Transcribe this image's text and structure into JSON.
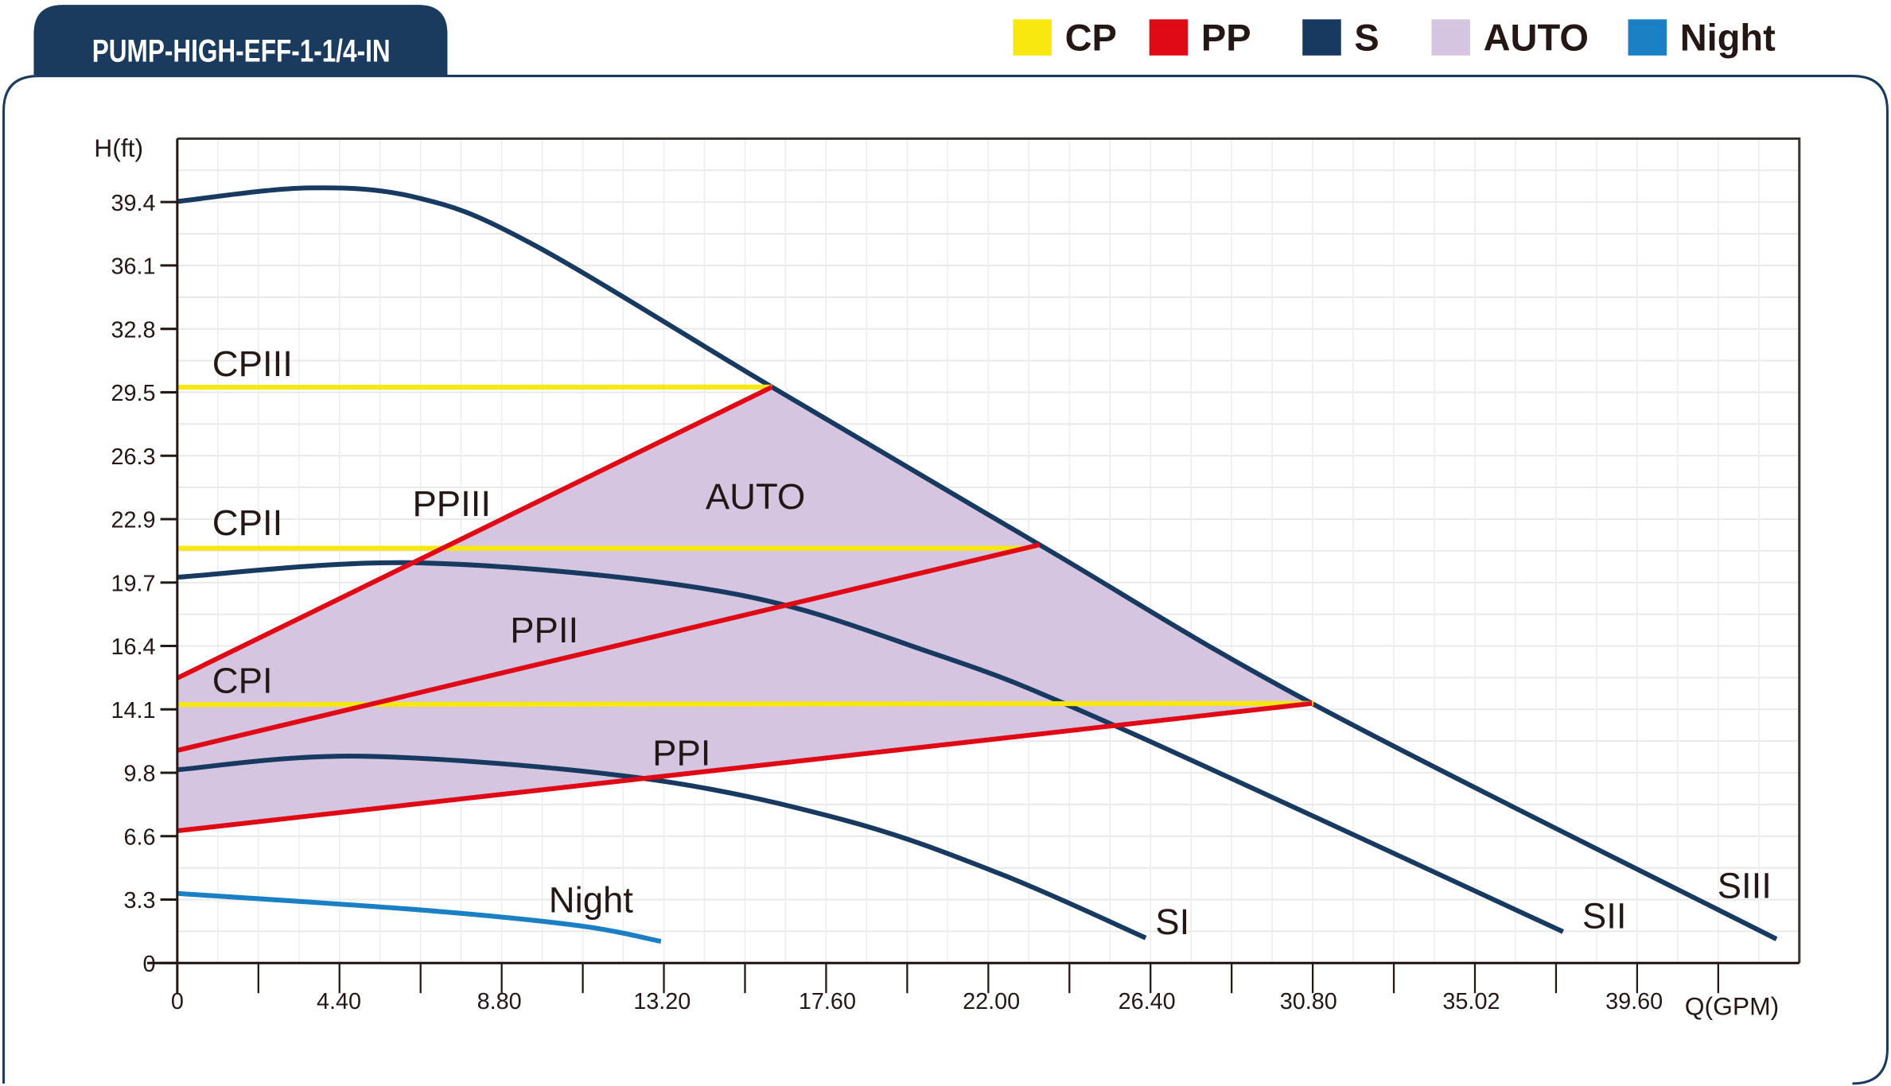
{
  "title": "PUMP-HIGH-EFF-1-1/4-IN",
  "legend": [
    {
      "label": "CP",
      "color": "#f8e80f"
    },
    {
      "label": "PP",
      "color": "#e00a16"
    },
    {
      "label": "S",
      "color": "#183a60"
    },
    {
      "label": "AUTO",
      "color": "#d5c5e1"
    },
    {
      "label": "Night",
      "color": "#1b7fc4"
    }
  ],
  "chart_data": {
    "type": "line",
    "title": "PUMP-HIGH-EFF-1-1/4-IN",
    "xlabel": "Q(GPM)",
    "ylabel": "H(ft)",
    "xlim": [
      0,
      44.0
    ],
    "ylim": [
      0,
      42.65
    ],
    "grid": true,
    "legend_position": "top-right",
    "x_ticks": [
      0,
      4.4,
      8.8,
      13.2,
      17.6,
      22.0,
      26.4,
      30.8,
      35.02,
      39.6
    ],
    "x_tick_labels": [
      "0",
      "4.40",
      "8.80",
      "13.20",
      "17.60",
      "22.00",
      "26.40",
      "30.80",
      "35.02",
      "39.60"
    ],
    "y_tick_labels": [
      "0",
      "3.3",
      "6.6",
      "9.8",
      "14.1",
      "16.4",
      "19.7",
      "22.9",
      "26.3",
      "29.5",
      "32.8",
      "36.1",
      "39.4"
    ],
    "series": [
      {
        "name": "SIII",
        "group": "S",
        "color": "#183a60",
        "smooth": true,
        "points": [
          [
            0,
            39.4
          ],
          [
            3.53,
            40.1
          ],
          [
            6.5,
            39.6
          ],
          [
            9.58,
            37.25
          ],
          [
            16.13,
            29.8
          ],
          [
            23.39,
            21.64
          ],
          [
            30.78,
            13.43
          ],
          [
            43.38,
            1.24
          ]
        ]
      },
      {
        "name": "SII",
        "group": "S",
        "color": "#183a60",
        "smooth": true,
        "points": [
          [
            0,
            19.96
          ],
          [
            6.64,
            20.7
          ],
          [
            14.82,
            19.2
          ],
          [
            20.38,
            16.1
          ],
          [
            25.29,
            12.4
          ],
          [
            37.59,
            1.62
          ]
        ]
      },
      {
        "name": "SI",
        "group": "S",
        "color": "#183a60",
        "smooth": true,
        "points": [
          [
            0,
            10.0
          ],
          [
            5.0,
            10.7
          ],
          [
            12.53,
            9.58
          ],
          [
            18.09,
            7.4
          ],
          [
            22.34,
            4.6
          ],
          [
            26.27,
            1.3
          ]
        ]
      },
      {
        "name": "Night",
        "group": "Night",
        "color": "#1b7fc4",
        "smooth": true,
        "points": [
          [
            0,
            3.6
          ],
          [
            6.64,
            2.74
          ],
          [
            10.9,
            1.93
          ],
          [
            13.12,
            1.12
          ]
        ]
      },
      {
        "name": "CPIII",
        "group": "CP",
        "color": "#f8e80f",
        "points": [
          [
            0,
            29.79
          ],
          [
            16.13,
            29.8
          ]
        ]
      },
      {
        "name": "CPII",
        "group": "CP",
        "color": "#f8e80f",
        "points": [
          [
            0,
            21.46
          ],
          [
            23.16,
            21.46
          ]
        ]
      },
      {
        "name": "CPI",
        "group": "CP",
        "color": "#f8e80f",
        "points": [
          [
            0,
            13.37
          ],
          [
            30.82,
            13.43
          ]
        ]
      },
      {
        "name": "PPIII",
        "group": "PP",
        "color": "#e00a16",
        "points": [
          [
            0,
            14.74
          ],
          [
            16.13,
            29.8
          ]
        ]
      },
      {
        "name": "PPII",
        "group": "PP",
        "color": "#e00a16",
        "points": [
          [
            0,
            11.0
          ],
          [
            23.39,
            21.64
          ]
        ]
      },
      {
        "name": "PPI",
        "group": "PP",
        "color": "#e00a16",
        "points": [
          [
            0,
            6.84
          ],
          [
            30.78,
            13.43
          ]
        ]
      }
    ],
    "auto_region": {
      "name": "AUTO",
      "color": "#d5c5e1",
      "points": [
        [
          0,
          6.84
        ],
        [
          0,
          14.74
        ],
        [
          16.13,
          29.8
        ],
        [
          23.39,
          21.64
        ],
        [
          30.78,
          13.43
        ]
      ]
    },
    "annotations": [
      "CPIII",
      "CPII",
      "CPI",
      "PPIII",
      "PPII",
      "PPI",
      "AUTO",
      "Night",
      "SI",
      "SII",
      "SIII"
    ]
  },
  "labels": {
    "CPIII": "CPIII",
    "CPII": "CPII",
    "CPI": "CPI",
    "PPIII": "PPIII",
    "PPII": "PPII",
    "PPI": "PPI",
    "AUTO": "AUTO",
    "Night": "Night",
    "SI": "SI",
    "SII": "SII",
    "SIII": "SIII",
    "ylabel": "H(ft)",
    "xlabel": "Q(GPM)"
  }
}
